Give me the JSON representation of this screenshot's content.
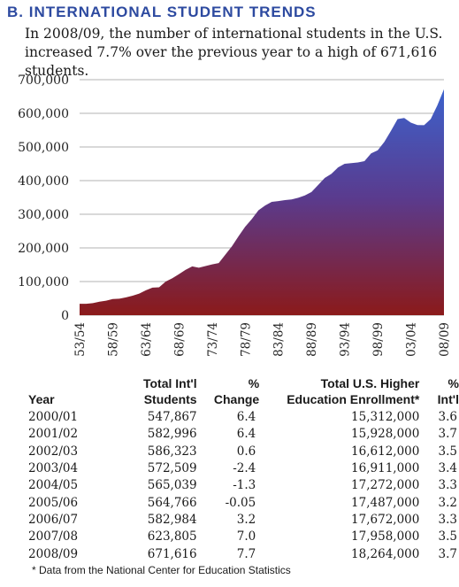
{
  "header": {
    "section_title": "B. INTERNATIONAL STUDENT TRENDS",
    "subtitle": "In 2008/09, the number of international students in the U.S. increased 7.7% over the previous year to a high of 671,616 students."
  },
  "chart_data": {
    "type": "area",
    "title": "",
    "xlabel": "",
    "ylabel": "",
    "ylim": [
      0,
      700000
    ],
    "yticks": [
      0,
      100000,
      200000,
      300000,
      400000,
      500000,
      600000,
      700000
    ],
    "ytick_labels": [
      "0",
      "100,000",
      "200,000",
      "300,000",
      "400,000",
      "500,000",
      "600,000",
      "700,000"
    ],
    "xtick_labels": [
      "53/54",
      "58/59",
      "63/64",
      "68/69",
      "73/74",
      "78/79",
      "83/84",
      "88/89",
      "93/94",
      "98/99",
      "03/04",
      "08/09"
    ],
    "grid": "horizontal",
    "colors": {
      "bottom": "#8b1a1a",
      "top": "#3c62cc",
      "grid": "#9a9a9a"
    },
    "x": [
      "53/54",
      "54/55",
      "55/56",
      "56/57",
      "57/58",
      "58/59",
      "59/60",
      "60/61",
      "61/62",
      "62/63",
      "63/64",
      "64/65",
      "65/66",
      "66/67",
      "67/68",
      "68/69",
      "69/70",
      "70/71",
      "71/72",
      "72/73",
      "73/74",
      "74/75",
      "75/76",
      "76/77",
      "77/78",
      "78/79",
      "79/80",
      "80/81",
      "81/82",
      "82/83",
      "83/84",
      "84/85",
      "85/86",
      "86/87",
      "87/88",
      "88/89",
      "89/90",
      "90/91",
      "91/92",
      "92/93",
      "93/94",
      "94/95",
      "95/96",
      "96/97",
      "97/98",
      "98/99",
      "99/00",
      "00/01",
      "01/02",
      "02/03",
      "03/04",
      "04/05",
      "05/06",
      "06/07",
      "07/08",
      "08/09"
    ],
    "series": [
      {
        "values": [
          34000,
          34000,
          36000,
          40000,
          43000,
          48000,
          49000,
          53000,
          58000,
          64000,
          74000,
          82000,
          83000,
          100000,
          110000,
          122000,
          135000,
          145000,
          141000,
          146000,
          151000,
          155000,
          180000,
          205000,
          235000,
          263000,
          286000,
          312000,
          326000,
          337000,
          339000,
          342000,
          344000,
          349000,
          356000,
          366000,
          387000,
          408000,
          420000,
          439000,
          450000,
          452000,
          454000,
          458000,
          481000,
          490000,
          515000,
          547867,
          582996,
          586323,
          572509,
          565039,
          564766,
          582984,
          623805,
          671616
        ]
      }
    ]
  },
  "table": {
    "headers": {
      "year": "Year",
      "total": [
        "Total Int'l",
        "Students"
      ],
      "change": [
        "%",
        "Change"
      ],
      "enroll": [
        "Total U.S. Higher",
        "Education Enrollment*"
      ],
      "intl": [
        "%",
        "Int'l"
      ]
    },
    "rows": [
      {
        "year": "2000/01",
        "total": "547,867",
        "change": "6.4",
        "enroll": "15,312,000",
        "intl": "3.6"
      },
      {
        "year": "2001/02",
        "total": "582,996",
        "change": "6.4",
        "enroll": "15,928,000",
        "intl": "3.7"
      },
      {
        "year": "2002/03",
        "total": "586,323",
        "change": "0.6",
        "enroll": "16,612,000",
        "intl": "3.5"
      },
      {
        "year": "2003/04",
        "total": "572,509",
        "change": "-2.4",
        "enroll": "16,911,000",
        "intl": "3.4"
      },
      {
        "year": "2004/05",
        "total": "565,039",
        "change": "-1.3",
        "enroll": "17,272,000",
        "intl": "3.3"
      },
      {
        "year": "2005/06",
        "total": "564,766",
        "change": "-0.05",
        "enroll": "17,487,000",
        "intl": "3.2"
      },
      {
        "year": "2006/07",
        "total": "582,984",
        "change": "3.2",
        "enroll": "17,672,000",
        "intl": "3.3"
      },
      {
        "year": "2007/08",
        "total": "623,805",
        "change": "7.0",
        "enroll": "17,958,000",
        "intl": "3.5"
      },
      {
        "year": "2008/09",
        "total": "671,616",
        "change": "7.7",
        "enroll": "18,264,000",
        "intl": "3.7"
      }
    ]
  },
  "footnote": "* Data from the National Center for Education Statistics"
}
